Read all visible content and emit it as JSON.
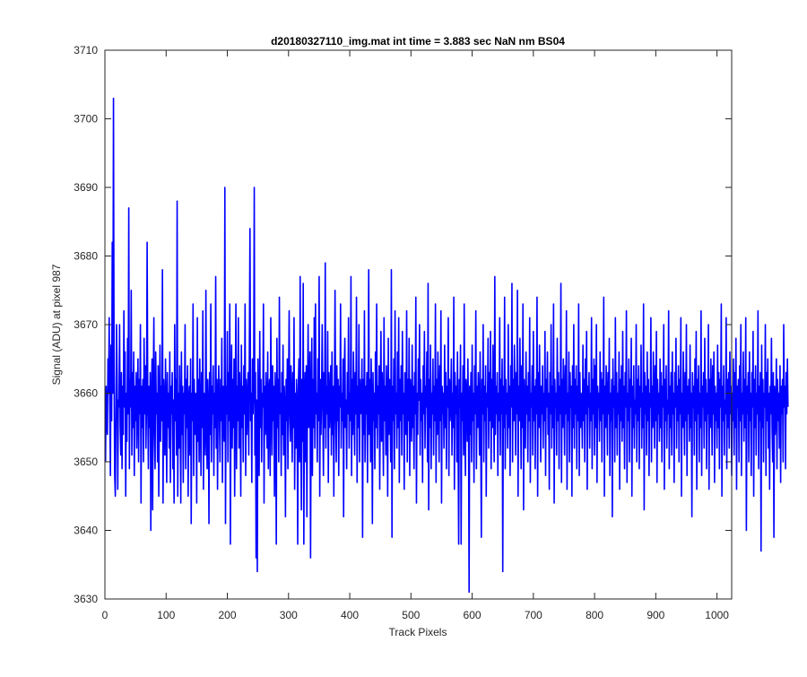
{
  "chart_data": {
    "type": "line",
    "title": "d20180327110_img.mat int time = 3.883 sec  NaN nm BS04",
    "xlabel": "Track Pixels",
    "ylabel": "Signal (ADU) at pixel 987",
    "xlim": [
      0,
      1024
    ],
    "ylim": [
      3630,
      3710
    ],
    "xticks": [
      0,
      100,
      200,
      300,
      400,
      500,
      600,
      700,
      800,
      900,
      1000
    ],
    "yticks": [
      3630,
      3640,
      3650,
      3660,
      3670,
      3680,
      3690,
      3700,
      3710
    ],
    "grid": false,
    "legend": "none",
    "series": [
      {
        "color": "#0000ff",
        "x_start": 1,
        "x_step": 1,
        "values": [
          3650,
          3661,
          3656,
          3654,
          3665,
          3660,
          3671,
          3658,
          3648,
          3667,
          3656,
          3682,
          3660,
          3703,
          3663,
          3648,
          3645,
          3657,
          3670,
          3662,
          3646,
          3659,
          3658,
          3670,
          3655,
          3651,
          3663,
          3649,
          3661,
          3654,
          3672,
          3658,
          3666,
          3645,
          3660,
          3653,
          3668,
          3657,
          3687,
          3649,
          3662,
          3658,
          3675,
          3651,
          3663,
          3655,
          3666,
          3648,
          3661,
          3656,
          3663,
          3652,
          3659,
          3665,
          3650,
          3662,
          3657,
          3670,
          3644,
          3661,
          3655,
          3662,
          3650,
          3668,
          3657,
          3664,
          3652,
          3658,
          3682,
          3659,
          3649,
          3661,
          3655,
          3663,
          3640,
          3659,
          3665,
          3643,
          3661,
          3671,
          3654,
          3649,
          3666,
          3657,
          3660,
          3650,
          3664,
          3645,
          3658,
          3667,
          3653,
          3661,
          3656,
          3678,
          3644,
          3662,
          3659,
          3651,
          3665,
          3657,
          3647,
          3663,
          3655,
          3660,
          3652,
          3666,
          3647,
          3661,
          3657,
          3663,
          3649,
          3659,
          3644,
          3670,
          3656,
          3662,
          3651,
          3688,
          3645,
          3660,
          3652,
          3664,
          3656,
          3644,
          3666,
          3654,
          3661,
          3647,
          3660,
          3657,
          3670,
          3649,
          3662,
          3655,
          3664,
          3645,
          3659,
          3661,
          3651,
          3665,
          3641,
          3660,
          3656,
          3673,
          3648,
          3662,
          3654,
          3660,
          3659,
          3644,
          3671,
          3653,
          3662,
          3650,
          3665,
          3657,
          3648,
          3663,
          3655,
          3672,
          3646,
          3660,
          3658,
          3651,
          3675,
          3656,
          3649,
          3662,
          3658,
          3641,
          3663,
          3654,
          3673,
          3650,
          3661,
          3657,
          3664,
          3648,
          3660,
          3655,
          3677,
          3652,
          3662,
          3646,
          3659,
          3664,
          3657,
          3650,
          3662,
          3656,
          3668,
          3647,
          3661,
          3658,
          3653,
          3690,
          3641,
          3661,
          3657,
          3669,
          3650,
          3663,
          3656,
          3673,
          3638,
          3659,
          3667,
          3652,
          3662,
          3655,
          3665,
          3645,
          3660,
          3673,
          3649,
          3661,
          3656,
          3671,
          3652,
          3663,
          3658,
          3645,
          3667,
          3655,
          3661,
          3650,
          3664,
          3657,
          3673,
          3648,
          3662,
          3654,
          3659,
          3663,
          3651,
          3666,
          3684,
          3656,
          3660,
          3647,
          3665,
          3657,
          3661,
          3690,
          3651,
          3663,
          3636,
          3659,
          3634,
          3665,
          3656,
          3648,
          3669,
          3655,
          3662,
          3650,
          3660,
          3658,
          3673,
          3644,
          3661,
          3654,
          3663,
          3657,
          3652,
          3666,
          3649,
          3660,
          3662,
          3648,
          3671,
          3658,
          3651,
          3664,
          3656,
          3661,
          3645,
          3663,
          3659,
          3638,
          3668,
          3655,
          3662,
          3650,
          3674,
          3657,
          3660,
          3648,
          3663,
          3654,
          3667,
          3651,
          3661,
          3658,
          3642,
          3662,
          3656,
          3665,
          3649,
          3660,
          3672,
          3657,
          3653,
          3664,
          3659,
          3650,
          3663,
          3655,
          3671,
          3646,
          3660,
          3652,
          3662,
          3658,
          3638,
          3661,
          3665,
          3650,
          3677,
          3656,
          3643,
          3662,
          3653,
          3676,
          3638,
          3659,
          3663,
          3650,
          3664,
          3642,
          3660,
          3670,
          3655,
          3661,
          3666,
          3636,
          3659,
          3668,
          3648,
          3662,
          3655,
          3671,
          3652,
          3673,
          3657,
          3660,
          3650,
          3665,
          3656,
          3677,
          3645,
          3662,
          3654,
          3660,
          3670,
          3658,
          3648,
          3663,
          3655,
          3679,
          3652,
          3661,
          3657,
          3669,
          3647,
          3663,
          3655,
          3659,
          3664,
          3651,
          3666,
          3654,
          3661,
          3645,
          3660,
          3675,
          3657,
          3650,
          3664,
          3656,
          3662,
          3648,
          3661,
          3658,
          3673,
          3652,
          3660,
          3656,
          3665,
          3642,
          3663,
          3668,
          3655,
          3659,
          3649,
          3663,
          3657,
          3671,
          3652,
          3660,
          3656,
          3677,
          3648,
          3662,
          3654,
          3666,
          3659,
          3651,
          3663,
          3657,
          3674,
          3647,
          3661,
          3655,
          3670,
          3650,
          3662,
          3658,
          3657,
          3665,
          3639,
          3662,
          3654,
          3672,
          3650,
          3661,
          3657,
          3663,
          3647,
          3660,
          3678,
          3654,
          3662,
          3650,
          3665,
          3658,
          3641,
          3663,
          3656,
          3660,
          3649,
          3666,
          3655,
          3673,
          3652,
          3661,
          3657,
          3664,
          3646,
          3660,
          3669,
          3653,
          3663,
          3657,
          3648,
          3671,
          3656,
          3661,
          3651,
          3664,
          3659,
          3645,
          3668,
          3654,
          3662,
          3658,
          3650,
          3678,
          3639,
          3661,
          3656,
          3665,
          3649,
          3672,
          3657,
          3660,
          3652,
          3666,
          3655,
          3671,
          3647,
          3662,
          3656,
          3664,
          3651,
          3669,
          3657,
          3660,
          3646,
          3663,
          3658,
          3654,
          3672,
          3650,
          3662,
          3656,
          3668,
          3648,
          3662,
          3659,
          3653,
          3667,
          3655,
          3661,
          3649,
          3663,
          3657,
          3674,
          3644,
          3660,
          3654,
          3665,
          3659,
          3670,
          3651,
          3662,
          3656,
          3660,
          3647,
          3664,
          3657,
          3669,
          3652,
          3661,
          3658,
          3666,
          3650,
          3676,
          3643,
          3662,
          3655,
          3667,
          3649,
          3660,
          3657,
          3665,
          3651,
          3661,
          3656,
          3673,
          3647,
          3662,
          3654,
          3666,
          3659,
          3650,
          3664,
          3656,
          3672,
          3644,
          3661,
          3657,
          3660,
          3652,
          3667,
          3655,
          3663,
          3649,
          3661,
          3658,
          3671,
          3648,
          3662,
          3656,
          3659,
          3665,
          3651,
          3660,
          3655,
          3674,
          3646,
          3663,
          3657,
          3661,
          3650,
          3666,
          3654,
          3638,
          3662,
          3658,
          3667,
          3638,
          3660,
          3656,
          3664,
          3651,
          3673,
          3655,
          3648,
          3662,
          3660,
          3653,
          3665,
          3657,
          3631,
          3661,
          3654,
          3663,
          3650,
          3667,
          3656,
          3660,
          3647,
          3664,
          3657,
          3672,
          3649,
          3661,
          3655,
          3663,
          3658,
          3651,
          3666,
          3655,
          3639,
          3662,
          3657,
          3670,
          3650,
          3661,
          3656,
          3664,
          3645,
          3660,
          3658,
          3668,
          3652,
          3663,
          3656,
          3669,
          3649,
          3662,
          3655,
          3667,
          3658,
          3650,
          3677,
          3654,
          3661,
          3657,
          3663,
          3648,
          3660,
          3656,
          3671,
          3651,
          3662,
          3657,
          3665,
          3634,
          3661,
          3655,
          3674,
          3649,
          3662,
          3657,
          3660,
          3652,
          3670,
          3655,
          3661,
          3648,
          3664,
          3658,
          3676,
          3650,
          3662,
          3656,
          3667,
          3659,
          3651,
          3663,
          3657,
          3675,
          3645,
          3661,
          3656,
          3668,
          3660,
          3649,
          3664,
          3655,
          3673,
          3643,
          3662,
          3658,
          3652,
          3666,
          3657,
          3661,
          3650,
          3663,
          3656,
          3671,
          3647,
          3660,
          3658,
          3664,
          3651,
          3669,
          3656,
          3661,
          3649,
          3662,
          3657,
          3674,
          3645,
          3663,
          3655,
          3667,
          3659,
          3650,
          3661,
          3657,
          3664,
          3652,
          3660,
          3656,
          3669,
          3648,
          3662,
          3658,
          3666,
          3654,
          3660,
          3646,
          3663,
          3657,
          3670,
          3652,
          3661,
          3655,
          3673,
          3644,
          3662,
          3658,
          3660,
          3651,
          3668,
          3656,
          3663,
          3649,
          3661,
          3657,
          3676,
          3647,
          3662,
          3655,
          3665,
          3659,
          3651,
          3664,
          3657,
          3672,
          3646,
          3660,
          3656,
          3666,
          3650,
          3663,
          3658,
          3661,
          3645,
          3664,
          3655,
          3670,
          3652,
          3662,
          3657,
          3664,
          3649,
          3661,
          3656,
          3673,
          3648,
          3663,
          3655,
          3660,
          3658,
          3652,
          3667,
          3656,
          3662,
          3650,
          3665,
          3657,
          3669,
          3646,
          3661,
          3658,
          3663,
          3652,
          3660,
          3656,
          3671,
          3649,
          3662,
          3657,
          3665,
          3651,
          3664,
          3655,
          3670,
          3647,
          3661,
          3658,
          3660,
          3653,
          3666,
          3656,
          3663,
          3650,
          3662,
          3657,
          3674,
          3645,
          3661,
          3655,
          3664,
          3659,
          3651,
          3663,
          3657,
          3668,
          3648,
          3660,
          3656,
          3662,
          3642,
          3665,
          3658,
          3661,
          3650,
          3671,
          3655,
          3663,
          3651,
          3660,
          3657,
          3666,
          3646,
          3662,
          3656,
          3664,
          3653,
          3669,
          3655,
          3661,
          3649,
          3663,
          3658,
          3672,
          3647,
          3660,
          3656,
          3665,
          3650,
          3662,
          3658,
          3668,
          3645,
          3661,
          3655,
          3664,
          3652,
          3659,
          3657,
          3670,
          3650,
          3662,
          3656,
          3664,
          3649,
          3661,
          3658,
          3667,
          3652,
          3660,
          3655,
          3673,
          3643,
          3663,
          3657,
          3661,
          3651,
          3666,
          3656,
          3662,
          3648,
          3660,
          3658,
          3671,
          3650,
          3661,
          3655,
          3666,
          3659,
          3652,
          3664,
          3656,
          3669,
          3647,
          3662,
          3657,
          3660,
          3653,
          3665,
          3655,
          3663,
          3650,
          3661,
          3658,
          3670,
          3646,
          3662,
          3656,
          3664,
          3652,
          3659,
          3657,
          3672,
          3649,
          3661,
          3655,
          3663,
          3651,
          3666,
          3657,
          3660,
          3647,
          3663,
          3658,
          3668,
          3652,
          3661,
          3656,
          3664,
          3650,
          3662,
          3657,
          3671,
          3645,
          3660,
          3655,
          3666,
          3658,
          3651,
          3663,
          3656,
          3670,
          3648,
          3661,
          3657,
          3662,
          3653,
          3667,
          3655,
          3660,
          3642,
          3663,
          3658,
          3661,
          3651,
          3665,
          3656,
          3669,
          3646,
          3662,
          3657,
          3664,
          3650,
          3660,
          3655,
          3672,
          3648,
          3661,
          3658,
          3663,
          3652,
          3668,
          3656,
          3662,
          3649,
          3660,
          3657,
          3670,
          3646,
          3662,
          3655,
          3665,
          3659,
          3651,
          3664,
          3657,
          3666,
          3647,
          3661,
          3656,
          3660,
          3652,
          3667,
          3655,
          3663,
          3649,
          3662,
          3658,
          3673,
          3645,
          3661,
          3656,
          3664,
          3651,
          3659,
          3657,
          3671,
          3649,
          3662,
          3655,
          3663,
          3652,
          3666,
          3657,
          3661,
          3648,
          3660,
          3656,
          3665,
          3651,
          3663,
          3655,
          3668,
          3646,
          3661,
          3658,
          3662,
          3650,
          3664,
          3656,
          3670,
          3648,
          3660,
          3657,
          3666,
          3653,
          3662,
          3655,
          3671,
          3640,
          3661,
          3657,
          3663,
          3650,
          3666,
          3656,
          3660,
          3648,
          3663,
          3658,
          3669,
          3645,
          3662,
          3655,
          3664,
          3651,
          3660,
          3657,
          3672,
          3649,
          3661,
          3656,
          3663,
          3637,
          3667,
          3655,
          3662,
          3650,
          3660,
          3658,
          3670,
          3648,
          3663,
          3656,
          3665,
          3652,
          3660,
          3646,
          3661,
          3657,
          3668,
          3655,
          3650,
          3663,
          3639,
          3661,
          3654,
          3657,
          3665,
          3649,
          3662,
          3656,
          3660,
          3652,
          3664,
          3647,
          3661,
          3657,
          3662,
          3650,
          3670,
          3658,
          3661,
          3649,
          3663,
          3657,
          3665,
          3658
        ]
      }
    ]
  }
}
